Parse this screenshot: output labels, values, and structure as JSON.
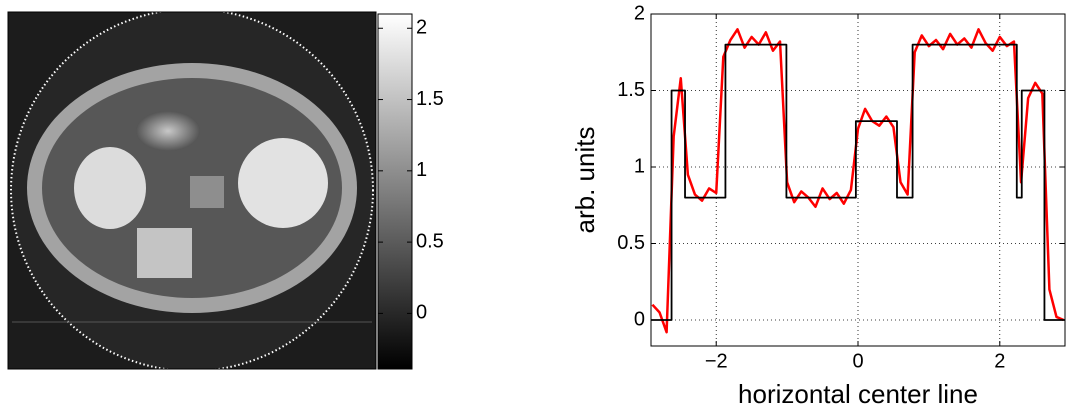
{
  "chart_data": [
    {
      "type": "image",
      "clim": [
        -0.39,
        2.1
      ],
      "cticks": [
        0,
        0.5,
        1,
        1.5,
        2
      ]
    },
    {
      "type": "line",
      "xlabel": "horizontal center line",
      "ylabel": "arb. units",
      "xlim": [
        -2.92,
        2.92
      ],
      "ylim": [
        -0.17,
        2
      ],
      "xticks": [
        {
          "value": -2,
          "label": "−2"
        },
        0,
        2
      ],
      "yticks": [
        0,
        0.5,
        1,
        1.5,
        2
      ],
      "grid": true,
      "series": [
        {
          "color": "#ff0000",
          "x": [
            -2.9,
            -2.8,
            -2.7,
            -2.6,
            -2.5,
            -2.4,
            -2.3,
            -2.2,
            -2.1,
            -2.0,
            -1.9,
            -1.8,
            -1.7,
            -1.6,
            -1.5,
            -1.4,
            -1.3,
            -1.2,
            -1.1,
            -1.0,
            -0.9,
            -0.8,
            -0.7,
            -0.6,
            -0.5,
            -0.4,
            -0.3,
            -0.2,
            -0.1,
            0.0,
            0.1,
            0.2,
            0.3,
            0.4,
            0.5,
            0.6,
            0.7,
            0.8,
            0.9,
            1.0,
            1.1,
            1.2,
            1.3,
            1.4,
            1.5,
            1.6,
            1.7,
            1.8,
            1.9,
            2.0,
            2.1,
            2.2,
            2.3,
            2.4,
            2.5,
            2.6,
            2.7,
            2.8,
            2.9
          ],
          "values": [
            0.1,
            0.05,
            -0.08,
            1.2,
            1.58,
            0.95,
            0.82,
            0.78,
            0.86,
            0.83,
            1.72,
            1.83,
            1.9,
            1.78,
            1.85,
            1.8,
            1.88,
            1.76,
            1.82,
            0.9,
            0.77,
            0.84,
            0.8,
            0.74,
            0.86,
            0.79,
            0.83,
            0.76,
            0.85,
            1.25,
            1.38,
            1.3,
            1.27,
            1.33,
            1.26,
            0.9,
            0.82,
            1.75,
            1.86,
            1.79,
            1.83,
            1.77,
            1.87,
            1.8,
            1.84,
            1.78,
            1.9,
            1.81,
            1.76,
            1.85,
            1.79,
            1.82,
            0.9,
            1.45,
            1.55,
            1.48,
            0.2,
            0.02,
            0.0
          ]
        },
        {
          "color": "#000000",
          "x": [
            -2.92,
            -2.63,
            -2.63,
            -2.44,
            -2.44,
            -1.87,
            -1.87,
            -1.01,
            -1.01,
            -0.03,
            -0.03,
            0.55,
            0.55,
            0.77,
            0.77,
            2.24,
            2.24,
            2.31,
            2.31,
            2.63,
            2.63,
            2.92
          ],
          "values": [
            0,
            0,
            1.5,
            1.5,
            0.8,
            0.8,
            1.8,
            1.8,
            0.8,
            0.8,
            1.3,
            1.3,
            0.8,
            0.8,
            1.8,
            1.8,
            0.8,
            0.8,
            1.5,
            1.5,
            0,
            0
          ]
        }
      ]
    }
  ]
}
